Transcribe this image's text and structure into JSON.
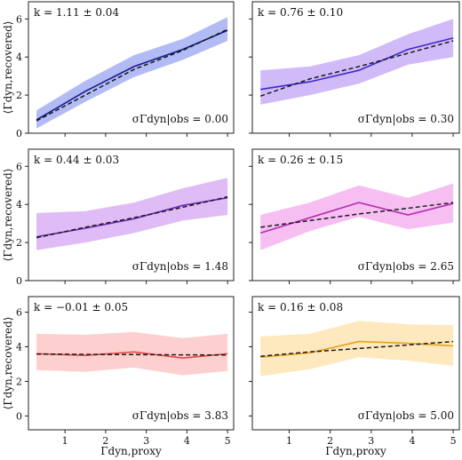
{
  "figure": {
    "ylabel": "⟨Γdyn,recovered⟩",
    "xlabel": "Γdyn,proxy",
    "x_ticks": [
      1,
      2,
      3,
      4,
      5
    ],
    "y_ticks": [
      0,
      2,
      4,
      6
    ]
  },
  "chart_data": [
    {
      "type": "line",
      "panel": "top-left",
      "k_label": "k = 1.11 ± 0.04",
      "sigma_label": "σΓdyn|obs = 0.00",
      "color": "#1a1a8c",
      "band_color": "#9aa4f2",
      "x": [
        0.3,
        1.5,
        2.7,
        3.9,
        5.0
      ],
      "y": [
        0.7,
        2.2,
        3.5,
        4.4,
        5.4
      ],
      "band_low": [
        0.25,
        1.65,
        2.95,
        3.85,
        4.85
      ],
      "band_high": [
        1.2,
        2.75,
        4.1,
        4.95,
        6.1
      ],
      "fit_y": [
        0.65,
        2.0,
        3.35,
        4.35,
        5.45
      ],
      "xlim": [
        0.1,
        5.15
      ],
      "ylim": [
        0,
        6.9
      ]
    },
    {
      "type": "line",
      "panel": "top-right",
      "k_label": "k = 0.76 ± 0.10",
      "sigma_label": "σΓdyn|obs = 0.30",
      "color": "#3d2acb",
      "band_color": "#c1a3f5",
      "x": [
        0.3,
        1.5,
        2.7,
        3.9,
        5.0
      ],
      "y": [
        2.3,
        2.7,
        3.3,
        4.4,
        5.0
      ],
      "band_low": [
        1.5,
        2.0,
        2.6,
        3.6,
        4.0
      ],
      "band_high": [
        3.3,
        3.5,
        4.1,
        5.2,
        6.0
      ],
      "fit_y": [
        1.95,
        2.85,
        3.5,
        4.2,
        4.85
      ],
      "xlim": [
        0.1,
        5.15
      ],
      "ylim": [
        0,
        6.9
      ]
    },
    {
      "type": "line",
      "panel": "middle-left",
      "k_label": "k = 0.44 ± 0.03",
      "sigma_label": "σΓdyn|obs = 1.48",
      "color": "#6e2ab8",
      "band_color": "#d4a6f2",
      "x": [
        0.3,
        1.5,
        2.7,
        3.9,
        5.0
      ],
      "y": [
        2.3,
        2.75,
        3.25,
        3.95,
        4.35
      ],
      "band_low": [
        1.6,
        2.0,
        2.5,
        3.15,
        3.45
      ],
      "band_high": [
        3.55,
        3.65,
        4.1,
        4.85,
        5.4
      ],
      "fit_y": [
        2.25,
        2.8,
        3.3,
        3.85,
        4.4
      ],
      "xlim": [
        0.1,
        5.15
      ],
      "ylim": [
        0,
        6.9
      ]
    },
    {
      "type": "line",
      "panel": "middle-right",
      "k_label": "k = 0.26 ± 0.15",
      "sigma_label": "σΓdyn|obs = 2.65",
      "color": "#b030b0",
      "band_color": "#f4a8ee",
      "x": [
        0.3,
        1.5,
        2.7,
        3.9,
        5.0
      ],
      "y": [
        2.5,
        3.3,
        4.1,
        3.45,
        4.05
      ],
      "band_low": [
        1.6,
        2.6,
        3.35,
        2.7,
        3.05
      ],
      "band_high": [
        3.45,
        4.1,
        5.0,
        4.35,
        5.1
      ],
      "fit_y": [
        2.8,
        3.15,
        3.5,
        3.8,
        4.1
      ],
      "xlim": [
        0.1,
        5.15
      ],
      "ylim": [
        0,
        6.9
      ]
    },
    {
      "type": "line",
      "panel": "bottom-left",
      "k_label": "k = −0.01 ± 0.05",
      "sigma_label": "σΓdyn|obs = 3.83",
      "color": "#e04848",
      "band_color": "#fcc0c0",
      "x": [
        0.3,
        1.5,
        2.7,
        3.9,
        5.0
      ],
      "y": [
        3.6,
        3.5,
        3.7,
        3.35,
        3.6
      ],
      "band_low": [
        2.65,
        2.55,
        2.8,
        2.35,
        2.6
      ],
      "band_high": [
        4.75,
        4.7,
        4.85,
        4.5,
        4.75
      ],
      "fit_y": [
        3.58,
        3.56,
        3.55,
        3.53,
        3.52
      ],
      "xlim": [
        0.1,
        5.15
      ],
      "ylim": [
        -0.8,
        6.9
      ]
    },
    {
      "type": "line",
      "panel": "bottom-right",
      "k_label": "k = 0.16 ± 0.08",
      "sigma_label": "σΓdyn|obs = 5.00",
      "color": "#e8a020",
      "band_color": "#fde2a8",
      "x": [
        0.3,
        1.5,
        2.7,
        3.9,
        5.0
      ],
      "y": [
        3.4,
        3.65,
        4.3,
        4.2,
        4.05
      ],
      "band_low": [
        2.3,
        2.7,
        3.4,
        3.2,
        2.9
      ],
      "band_high": [
        4.6,
        4.75,
        5.5,
        5.3,
        5.25
      ],
      "fit_y": [
        3.45,
        3.7,
        3.9,
        4.1,
        4.3
      ],
      "xlim": [
        0.1,
        5.15
      ],
      "ylim": [
        -0.8,
        6.9
      ]
    }
  ]
}
